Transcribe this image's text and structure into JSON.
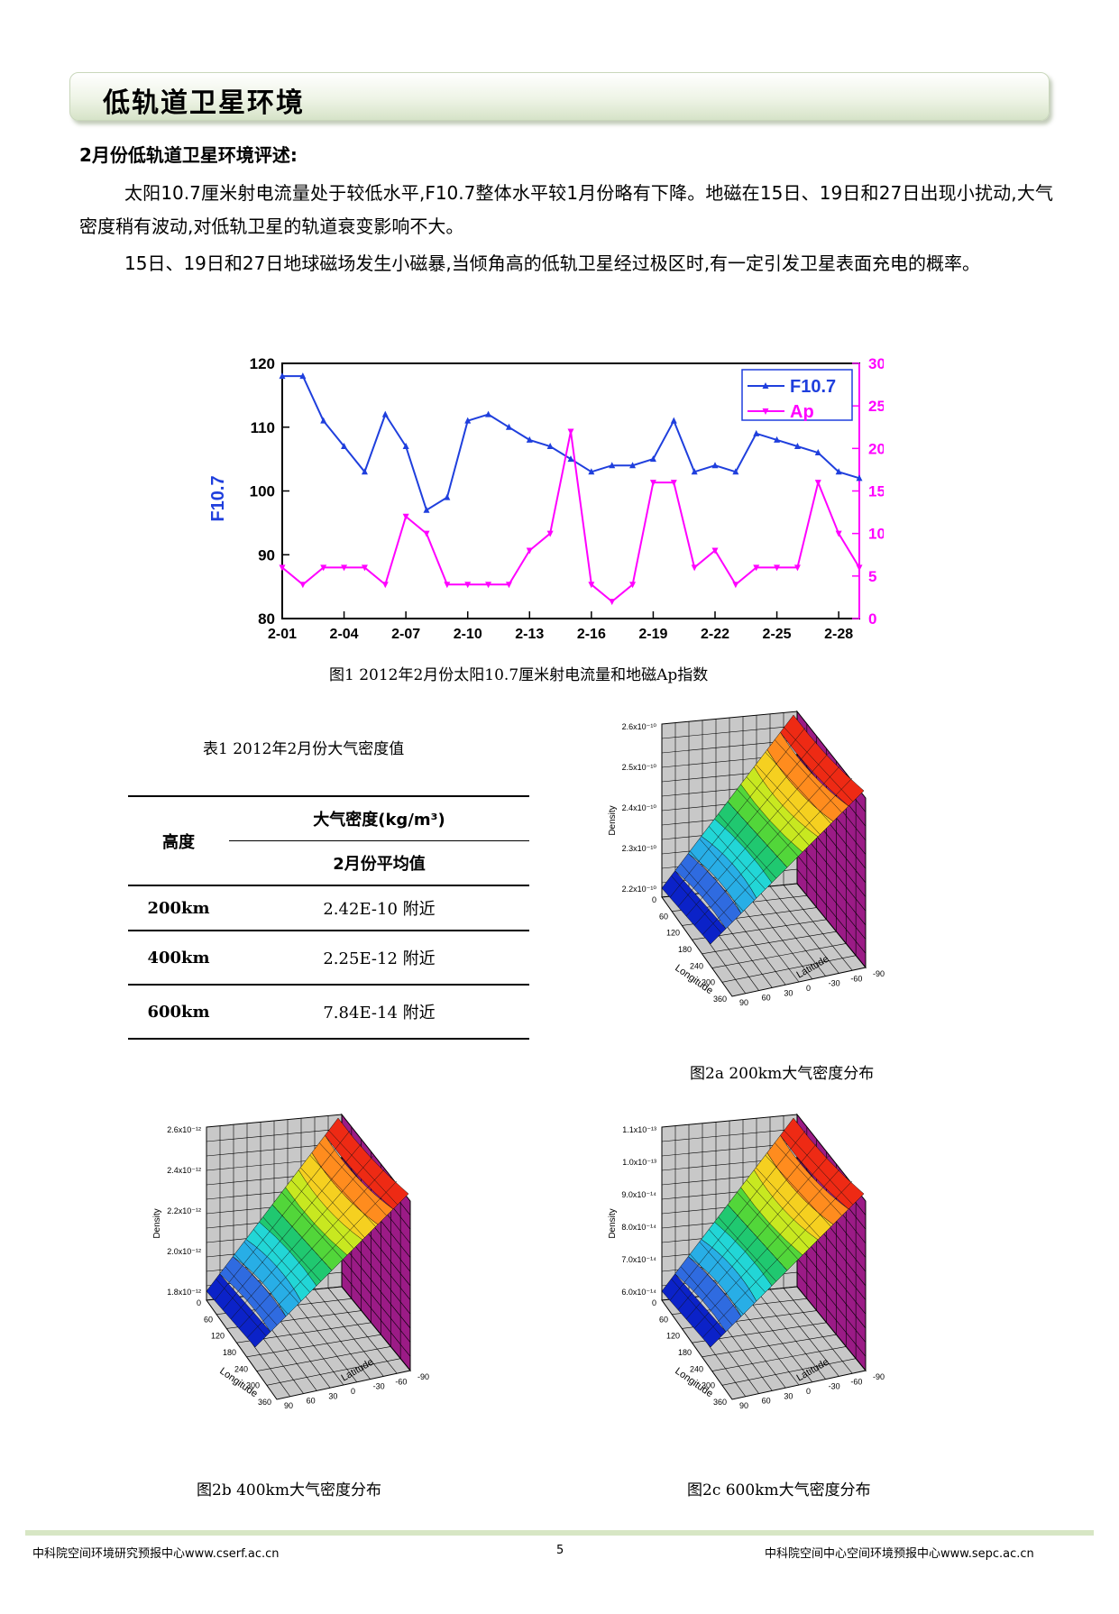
{
  "banner": {
    "title": "低轨道卫星环境"
  },
  "section": {
    "heading": "2月份低轨道卫星环境评述:"
  },
  "paragraphs": [
    "太阳10.7厘米射电流量处于较低水平,F10.7整体水平较1月份略有下降。地磁在15日、19日和27日出现小扰动,大气密度稍有波动,对低轨卫星的轨道衰变影响不大。",
    "15日、19日和27日地球磁场发生小磁暴,当倾角高的低轨卫星经过极区时,有一定引发卫星表面充电的概率。"
  ],
  "chart_data": {
    "type": "line",
    "ylabel_left": "F10.7",
    "x_ticks": [
      "2-01",
      "2-04",
      "2-07",
      "2-10",
      "2-13",
      "2-16",
      "2-19",
      "2-22",
      "2-25",
      "2-28"
    ],
    "x": [
      1,
      2,
      3,
      4,
      5,
      6,
      7,
      8,
      9,
      10,
      11,
      12,
      13,
      14,
      15,
      16,
      17,
      18,
      19,
      20,
      21,
      22,
      23,
      24,
      25,
      26,
      27,
      28,
      29
    ],
    "ylim_left": [
      80,
      120
    ],
    "yticks_left": [
      "80",
      "90",
      "100",
      "110",
      "120"
    ],
    "ylim_right": [
      0,
      30
    ],
    "yticks_right": [
      "0",
      "5",
      "10",
      "15",
      "20",
      "25",
      "30"
    ],
    "series": [
      {
        "name": "F10.7",
        "axis": "left",
        "color": "#1f3fdd",
        "values": [
          118,
          118,
          111,
          107,
          103,
          112,
          107,
          97,
          99,
          111,
          112,
          110,
          108,
          107,
          105,
          103,
          104,
          104,
          105,
          111,
          103,
          104,
          103,
          109,
          108,
          107,
          106,
          103,
          102
        ]
      },
      {
        "name": "Ap",
        "axis": "right",
        "color": "#ff00ff",
        "values": [
          6,
          4,
          6,
          6,
          6,
          4,
          12,
          10,
          4,
          4,
          4,
          4,
          8,
          10,
          22,
          4,
          2,
          4,
          16,
          16,
          6,
          8,
          4,
          6,
          6,
          6,
          16,
          10,
          6
        ]
      }
    ],
    "legend": "top-right",
    "grid": false
  },
  "figure1": {
    "caption": "图1 2012年2月份太阳10.7厘米射电流量和地磁Ap指数"
  },
  "table1": {
    "caption": "表1 2012年2月份大气密度值",
    "header_height": "高度",
    "header_density": "大气密度(kg/m³)",
    "header_avg": "2月份平均值",
    "rows": [
      {
        "height": "200km",
        "value": "2.42E-10 附近"
      },
      {
        "height": "400km",
        "value": "2.25E-12 附近"
      },
      {
        "height": "600km",
        "value": "7.84E-14 附近"
      }
    ]
  },
  "figure2a": {
    "caption": "图2a 200km大气密度分布",
    "z_label": "Density",
    "z_ticks": [
      "2.2x10⁻¹⁰",
      "2.3x10⁻¹⁰",
      "2.4x10⁻¹⁰",
      "2.5x10⁻¹⁰",
      "2.6x10⁻¹⁰"
    ],
    "lon_label": "Longitude",
    "lat_label": "Latitude",
    "lon_ticks": [
      "0",
      "60",
      "120",
      "180",
      "240",
      "300",
      "360"
    ],
    "lat_ticks": [
      "-90",
      "-60",
      "-30",
      "0",
      "30",
      "60",
      "90"
    ]
  },
  "figure2b": {
    "caption": "图2b 400km大气密度分布",
    "z_label": "Density",
    "z_ticks": [
      "1.8x10⁻¹²",
      "2.0x10⁻¹²",
      "2.2x10⁻¹²",
      "2.4x10⁻¹²",
      "2.6x10⁻¹²"
    ],
    "lon_label": "Longitude",
    "lat_label": "Latitude",
    "lon_ticks": [
      "0",
      "60",
      "120",
      "180",
      "240",
      "300",
      "360"
    ],
    "lat_ticks": [
      "-90",
      "-60",
      "-30",
      "0",
      "30",
      "60",
      "90"
    ]
  },
  "figure2c": {
    "caption": "图2c 600km大气密度分布",
    "z_label": "Density",
    "z_ticks": [
      "6.0x10⁻¹⁴",
      "7.0x10⁻¹⁴",
      "8.0x10⁻¹⁴",
      "9.0x10⁻¹⁴",
      "1.0x10⁻¹³",
      "1.1x10⁻¹³"
    ],
    "lon_label": "Longitude",
    "lat_label": "Latitude",
    "lon_ticks": [
      "0",
      "60",
      "120",
      "180",
      "240",
      "300",
      "360"
    ],
    "lat_ticks": [
      "-90",
      "-60",
      "-30",
      "0",
      "30",
      "60",
      "90"
    ]
  },
  "footer": {
    "left": "中科院空间环境研究预报中心www.cserf.ac.cn",
    "page": "5",
    "right": "中科院空间中心空间环境预报中心www.sepc.ac.cn"
  },
  "colors": {
    "banner_green": "#d6e3c8",
    "f107": "#1f3fdd",
    "ap": "#ff00ff",
    "wall_purple": "#9b1b86"
  }
}
